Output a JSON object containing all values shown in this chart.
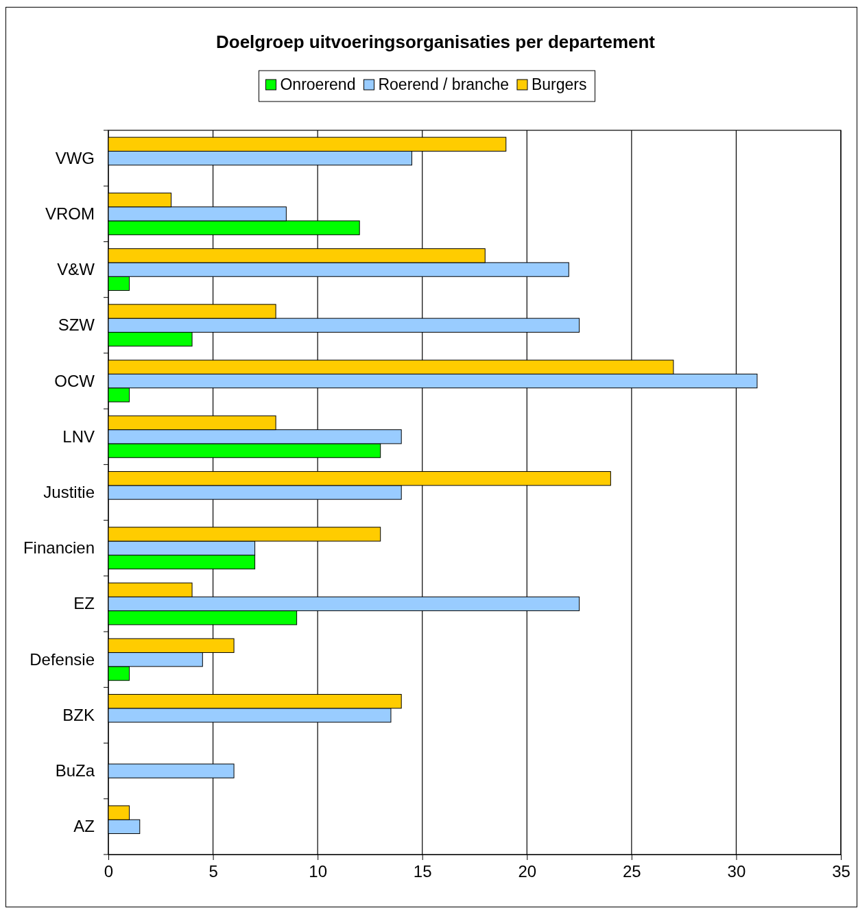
{
  "chart_data": {
    "type": "bar",
    "orientation": "horizontal",
    "title": "Doelgroep uitvoeringsorganisaties per departement",
    "categories": [
      "VWG",
      "VROM",
      "V&W",
      "SZW",
      "OCW",
      "LNV",
      "Justitie",
      "Financien",
      "EZ",
      "Defensie",
      "BZK",
      "BuZa",
      "AZ"
    ],
    "series": [
      {
        "name": "Onroerend",
        "color": "#00ff00",
        "values": [
          null,
          12,
          1,
          4,
          1,
          13,
          null,
          7,
          9,
          1,
          null,
          null,
          null
        ]
      },
      {
        "name": "Roerend / branche",
        "color": "#99ccff",
        "values": [
          14.5,
          8.5,
          22,
          22.5,
          31,
          14,
          14,
          7,
          22.5,
          4.5,
          13.5,
          6,
          1.5
        ]
      },
      {
        "name": "Burgers",
        "color": "#ffcc00",
        "values": [
          19,
          3,
          18,
          8,
          27,
          8,
          24,
          13,
          4,
          6,
          14,
          null,
          1
        ]
      }
    ],
    "xlim": [
      0,
      35
    ],
    "xticks": [
      0,
      5,
      10,
      15,
      20,
      25,
      30,
      35
    ],
    "grid": "x",
    "legend": "top"
  }
}
